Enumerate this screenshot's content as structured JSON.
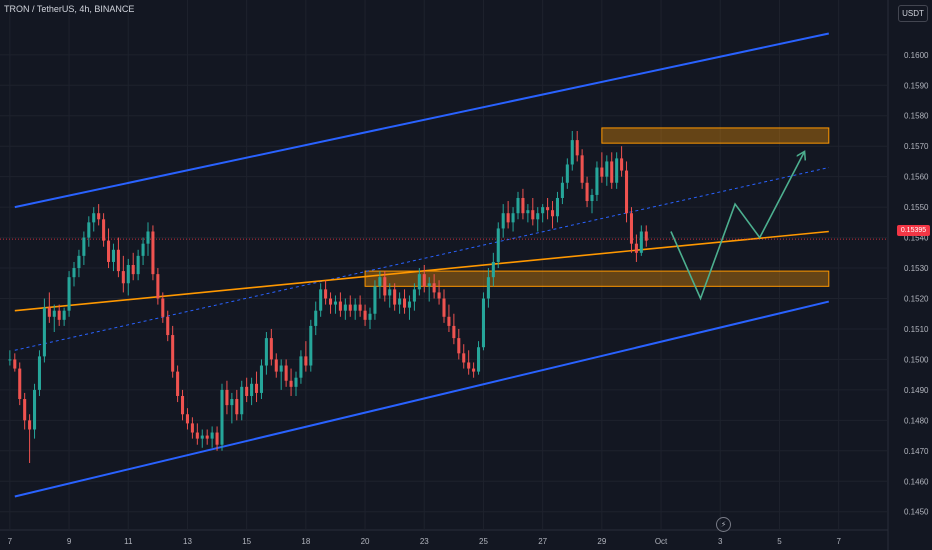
{
  "header": {
    "title": "TRON / TetherUS, 4h, BINANCE"
  },
  "currency_button": "USDT",
  "last_price_label": "0.15395",
  "icons": {
    "bolt": "lightning-icon"
  },
  "colors": {
    "background": "#131722",
    "up": "#26a69a",
    "down": "#ef5350",
    "channel": "#2962ff",
    "support_line": "#ff9800",
    "zone": "#ff9800",
    "projection": "#4caf8f",
    "price_line": "#f23645"
  },
  "chart_data": {
    "type": "candlestick",
    "title": "TRON / TetherUS, 4h, BINANCE",
    "y_axis": {
      "ticks": [
        0.145,
        0.146,
        0.147,
        0.148,
        0.149,
        0.15,
        0.151,
        0.152,
        0.153,
        0.154,
        0.155,
        0.156,
        0.157,
        0.158,
        0.159,
        0.16
      ],
      "tick_labels": [
        "0.1450",
        "0.1460",
        "0.1470",
        "0.1480",
        "0.1490",
        "0.1500",
        "0.1510",
        "0.1520",
        "0.1530",
        "0.1540",
        "0.1550",
        "0.1560",
        "0.1570",
        "0.1580",
        "0.1590",
        "0.1600"
      ],
      "range": [
        0.1444,
        0.1618
      ]
    },
    "x_axis": {
      "tick_labels": [
        "7",
        "9",
        "11",
        "13",
        "15",
        "18",
        "20",
        "23",
        "25",
        "27",
        "29",
        "Oct",
        "3",
        "5",
        "7"
      ],
      "tick_index": [
        0,
        12,
        24,
        36,
        48,
        60,
        72,
        84,
        96,
        108,
        120,
        132,
        144,
        156,
        168
      ],
      "range": [
        -2,
        178
      ]
    },
    "candles": [
      [
        0.15,
        0.1503,
        0.1498,
        0.15
      ],
      [
        0.15,
        0.1502,
        0.1496,
        0.1497
      ],
      [
        0.1497,
        0.1499,
        0.1485,
        0.1487
      ],
      [
        0.1487,
        0.1489,
        0.1477,
        0.148
      ],
      [
        0.148,
        0.1482,
        0.1466,
        0.1477
      ],
      [
        0.1477,
        0.1492,
        0.1474,
        0.149
      ],
      [
        0.149,
        0.1503,
        0.1488,
        0.1501
      ],
      [
        0.1501,
        0.152,
        0.1499,
        0.1517
      ],
      [
        0.1517,
        0.1522,
        0.1512,
        0.1514
      ],
      [
        0.1514,
        0.1518,
        0.1509,
        0.1516
      ],
      [
        0.1516,
        0.1518,
        0.1511,
        0.1513
      ],
      [
        0.1513,
        0.1517,
        0.1511,
        0.1516
      ],
      [
        0.1516,
        0.1529,
        0.1514,
        0.1527
      ],
      [
        0.1527,
        0.1532,
        0.1524,
        0.153
      ],
      [
        0.153,
        0.1536,
        0.1527,
        0.1534
      ],
      [
        0.1534,
        0.1542,
        0.1531,
        0.154
      ],
      [
        0.154,
        0.1547,
        0.1537,
        0.1545
      ],
      [
        0.1545,
        0.155,
        0.1542,
        0.1548
      ],
      [
        0.1548,
        0.1551,
        0.1544,
        0.1546
      ],
      [
        0.1546,
        0.1548,
        0.1537,
        0.1539
      ],
      [
        0.1539,
        0.1543,
        0.153,
        0.1532
      ],
      [
        0.1532,
        0.1538,
        0.1529,
        0.1536
      ],
      [
        0.1536,
        0.154,
        0.1527,
        0.1529
      ],
      [
        0.1529,
        0.1534,
        0.1522,
        0.1525
      ],
      [
        0.1525,
        0.1533,
        0.1521,
        0.1531
      ],
      [
        0.1531,
        0.1535,
        0.1526,
        0.1528
      ],
      [
        0.1528,
        0.1536,
        0.1526,
        0.1534
      ],
      [
        0.1534,
        0.154,
        0.1531,
        0.1538
      ],
      [
        0.1538,
        0.1545,
        0.1534,
        0.1542
      ],
      [
        0.1542,
        0.1544,
        0.1526,
        0.1528
      ],
      [
        0.1528,
        0.153,
        0.1518,
        0.152
      ],
      [
        0.152,
        0.1522,
        0.1512,
        0.1514
      ],
      [
        0.1514,
        0.1516,
        0.1506,
        0.1508
      ],
      [
        0.1508,
        0.1511,
        0.1494,
        0.1496
      ],
      [
        0.1496,
        0.1498,
        0.1486,
        0.1488
      ],
      [
        0.1488,
        0.149,
        0.148,
        0.1482
      ],
      [
        0.1482,
        0.1484,
        0.1477,
        0.1479
      ],
      [
        0.1479,
        0.1481,
        0.1474,
        0.1476
      ],
      [
        0.1476,
        0.1479,
        0.1472,
        0.1474
      ],
      [
        0.1474,
        0.1477,
        0.1471,
        0.1475
      ],
      [
        0.1475,
        0.1477,
        0.1472,
        0.1474
      ],
      [
        0.1474,
        0.1478,
        0.1471,
        0.1476
      ],
      [
        0.1476,
        0.1478,
        0.147,
        0.1472
      ],
      [
        0.1472,
        0.1492,
        0.147,
        0.149
      ],
      [
        0.149,
        0.1493,
        0.1482,
        0.1485
      ],
      [
        0.1485,
        0.1489,
        0.1479,
        0.1487
      ],
      [
        0.1487,
        0.149,
        0.148,
        0.1482
      ],
      [
        0.1482,
        0.1493,
        0.148,
        0.1491
      ],
      [
        0.1491,
        0.1494,
        0.1486,
        0.1488
      ],
      [
        0.1488,
        0.1494,
        0.1485,
        0.1492
      ],
      [
        0.1492,
        0.1496,
        0.1486,
        0.1489
      ],
      [
        0.1489,
        0.15,
        0.1487,
        0.1498
      ],
      [
        0.1498,
        0.1509,
        0.1495,
        0.1507
      ],
      [
        0.1507,
        0.151,
        0.1498,
        0.15
      ],
      [
        0.15,
        0.1502,
        0.1494,
        0.1496
      ],
      [
        0.1496,
        0.15,
        0.149,
        0.1498
      ],
      [
        0.1498,
        0.15,
        0.1491,
        0.1493
      ],
      [
        0.1493,
        0.1497,
        0.1488,
        0.1491
      ],
      [
        0.1491,
        0.1496,
        0.1488,
        0.1494
      ],
      [
        0.1494,
        0.1503,
        0.1492,
        0.1501
      ],
      [
        0.1501,
        0.1506,
        0.1496,
        0.1498
      ],
      [
        0.1498,
        0.1513,
        0.1496,
        0.1511
      ],
      [
        0.1511,
        0.1519,
        0.1508,
        0.1516
      ],
      [
        0.1516,
        0.1525,
        0.1514,
        0.1523
      ],
      [
        0.1523,
        0.1526,
        0.1518,
        0.152
      ],
      [
        0.152,
        0.1522,
        0.1515,
        0.1518
      ],
      [
        0.1518,
        0.1521,
        0.1515,
        0.1519
      ],
      [
        0.1519,
        0.1522,
        0.1514,
        0.1516
      ],
      [
        0.1516,
        0.152,
        0.1513,
        0.1518
      ],
      [
        0.1518,
        0.1521,
        0.1514,
        0.1516
      ],
      [
        0.1516,
        0.152,
        0.1513,
        0.1518
      ],
      [
        0.1518,
        0.1521,
        0.1514,
        0.1516
      ],
      [
        0.1516,
        0.1518,
        0.1511,
        0.1513
      ],
      [
        0.1513,
        0.1517,
        0.151,
        0.1515
      ],
      [
        0.1515,
        0.1526,
        0.1513,
        0.1524
      ],
      [
        0.1524,
        0.1529,
        0.152,
        0.1527
      ],
      [
        0.1527,
        0.1529,
        0.1519,
        0.1521
      ],
      [
        0.1521,
        0.1525,
        0.1517,
        0.1523
      ],
      [
        0.1523,
        0.1525,
        0.1516,
        0.1518
      ],
      [
        0.1518,
        0.1522,
        0.1515,
        0.152
      ],
      [
        0.152,
        0.1523,
        0.1515,
        0.1517
      ],
      [
        0.1517,
        0.1521,
        0.1513,
        0.1519
      ],
      [
        0.1519,
        0.1525,
        0.1516,
        0.1523
      ],
      [
        0.1523,
        0.153,
        0.1521,
        0.1528
      ],
      [
        0.1528,
        0.1531,
        0.1522,
        0.1524
      ],
      [
        0.1524,
        0.1527,
        0.1519,
        0.1525
      ],
      [
        0.1525,
        0.1528,
        0.152,
        0.1522
      ],
      [
        0.1522,
        0.1526,
        0.1518,
        0.152
      ],
      [
        0.152,
        0.1523,
        0.1512,
        0.1514
      ],
      [
        0.1514,
        0.1518,
        0.1509,
        0.1511
      ],
      [
        0.1511,
        0.1515,
        0.1505,
        0.1507
      ],
      [
        0.1507,
        0.151,
        0.15,
        0.1502
      ],
      [
        0.1502,
        0.1505,
        0.1497,
        0.1499
      ],
      [
        0.1499,
        0.1503,
        0.1495,
        0.1497
      ],
      [
        0.1497,
        0.1499,
        0.1494,
        0.1496
      ],
      [
        0.1496,
        0.1506,
        0.1495,
        0.1504
      ],
      [
        0.1504,
        0.1522,
        0.1503,
        0.152
      ],
      [
        0.152,
        0.153,
        0.1517,
        0.1527
      ],
      [
        0.1527,
        0.1535,
        0.1524,
        0.1532
      ],
      [
        0.1532,
        0.1545,
        0.153,
        0.1543
      ],
      [
        0.1543,
        0.1551,
        0.154,
        0.1548
      ],
      [
        0.1548,
        0.1552,
        0.1543,
        0.1545
      ],
      [
        0.1545,
        0.155,
        0.1542,
        0.1548
      ],
      [
        0.1548,
        0.1555,
        0.1546,
        0.1553
      ],
      [
        0.1553,
        0.1556,
        0.1546,
        0.1548
      ],
      [
        0.1548,
        0.1551,
        0.1545,
        0.1549
      ],
      [
        0.1549,
        0.1553,
        0.1544,
        0.1546
      ],
      [
        0.1546,
        0.155,
        0.1542,
        0.1548
      ],
      [
        0.1548,
        0.1551,
        0.1545,
        0.155
      ],
      [
        0.155,
        0.1553,
        0.1546,
        0.1549
      ],
      [
        0.1549,
        0.1552,
        0.1543,
        0.1547
      ],
      [
        0.1547,
        0.1555,
        0.1545,
        0.1553
      ],
      [
        0.1553,
        0.156,
        0.1551,
        0.1558
      ],
      [
        0.1558,
        0.1566,
        0.1556,
        0.1564
      ],
      [
        0.1564,
        0.1575,
        0.1562,
        0.1572
      ],
      [
        0.1572,
        0.1575,
        0.1565,
        0.1567
      ],
      [
        0.1567,
        0.1569,
        0.1556,
        0.1558
      ],
      [
        0.1558,
        0.156,
        0.155,
        0.1552
      ],
      [
        0.1552,
        0.1556,
        0.1548,
        0.1554
      ],
      [
        0.1554,
        0.1565,
        0.1552,
        0.1563
      ],
      [
        0.1563,
        0.1568,
        0.1558,
        0.156
      ],
      [
        0.156,
        0.1567,
        0.1557,
        0.1565
      ],
      [
        0.1565,
        0.1568,
        0.1556,
        0.1558
      ],
      [
        0.1558,
        0.1568,
        0.1556,
        0.1566
      ],
      [
        0.1566,
        0.157,
        0.156,
        0.1562
      ],
      [
        0.1562,
        0.1565,
        0.1545,
        0.1548
      ],
      [
        0.1548,
        0.155,
        0.1535,
        0.1538
      ],
      [
        0.1538,
        0.1541,
        0.1532,
        0.1535
      ],
      [
        0.1535,
        0.1544,
        0.1534,
        0.1542
      ],
      [
        0.1542,
        0.1544,
        0.1537,
        0.1539
      ]
    ],
    "candle_index_start": 0,
    "channel_upper": {
      "from": [
        1,
        0.155
      ],
      "to": [
        166,
        0.1607
      ]
    },
    "channel_lower": {
      "from": [
        1,
        0.1455
      ],
      "to": [
        166,
        0.1519
      ]
    },
    "midline_dashed": {
      "from": [
        1,
        0.1503
      ],
      "to": [
        166,
        0.1563
      ]
    },
    "support_line": {
      "from": [
        1,
        0.1516
      ],
      "to": [
        166,
        0.1542
      ]
    },
    "resistance_zone": {
      "x": [
        120,
        166
      ],
      "y": [
        0.1571,
        0.1576
      ]
    },
    "support_zone": {
      "x": [
        72,
        166
      ],
      "y": [
        0.1524,
        0.1529
      ]
    },
    "projection_path": [
      [
        134,
        0.1542
      ],
      [
        140,
        0.152
      ],
      [
        147,
        0.1551
      ],
      [
        152,
        0.154
      ],
      [
        161,
        0.1568
      ]
    ],
    "last_price": 0.15395
  }
}
